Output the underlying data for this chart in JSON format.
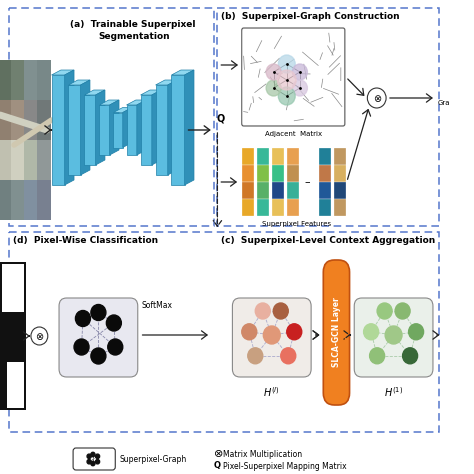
{
  "bg_color": "#ffffff",
  "panel_a_title_line1": "(a)  Trainable Superpixel",
  "panel_a_title_line2": "Segmentation",
  "panel_b_title": "(b)  Superpixel-Graph Construction",
  "panel_c_title": "(c)  Superpixel-Level Context Aggregation",
  "panel_d_title": "(d)  Pixel-Wise Classification",
  "slca_color": "#f08020",
  "slca_edge_color": "#c05010",
  "encoder_face": "#5bbde0",
  "encoder_top": "#90d8f0",
  "encoder_side": "#3090b8",
  "encoder_edge": "#2080a8",
  "graph_node_colors_h0": [
    "#e8b0a0",
    "#a86040",
    "#c82020",
    "#e87060",
    "#c8a080",
    "#d08868",
    "#e09878"
  ],
  "graph_node_colors_h1": [
    "#98c880",
    "#88b870",
    "#70a860",
    "#386838",
    "#90c078",
    "#b0d898",
    "#a0c888"
  ],
  "graph_node_colors_d": [
    "#111111",
    "#111111",
    "#111111",
    "#111111",
    "#111111"
  ],
  "feat_col1": [
    "#e8a828",
    "#e89030",
    "#d07828"
  ],
  "feat_col2": [
    "#38b898",
    "#80c048",
    "#58b068"
  ],
  "feat_col3": [
    "#e8c058",
    "#38c088",
    "#204888"
  ],
  "feat_col4": [
    "#e8a050",
    "#c09050",
    "#38b098"
  ],
  "feat_col5": [
    "#208098",
    "#c07848",
    "#205898"
  ],
  "feat_col6": [
    "#c09860",
    "#d8b060",
    "#204878"
  ],
  "adj_superpixel_colors": [
    "#b8d8e8",
    "#c8b8d8",
    "#d8c8e0",
    "#98c8b0",
    "#a8c8a8",
    "#d8b8c8",
    "#e8c8d0"
  ]
}
